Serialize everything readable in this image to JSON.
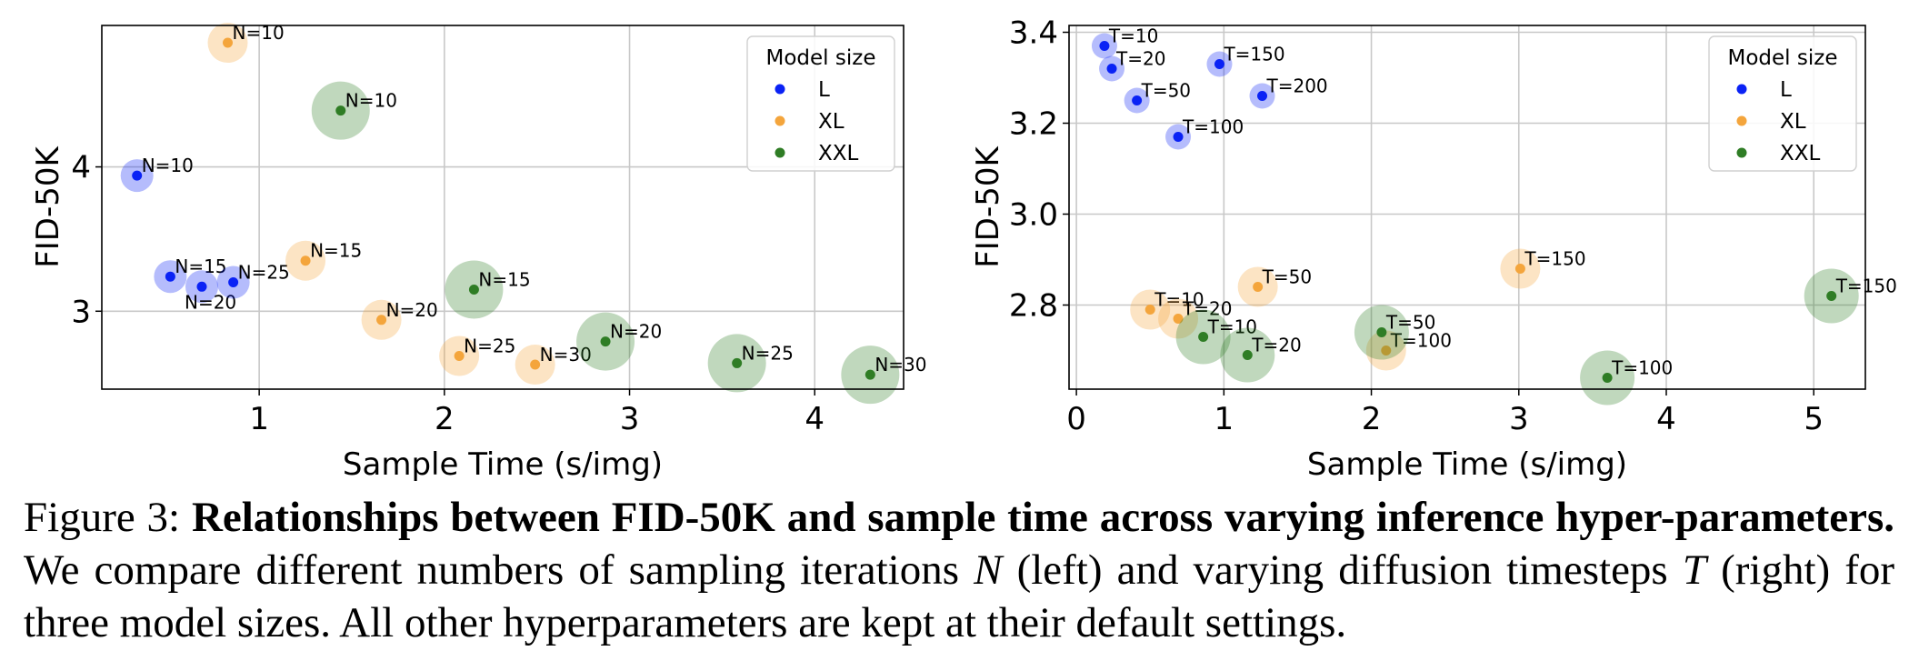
{
  "colors": {
    "L": "#0a22f5",
    "XL": "#f4a53c",
    "XXL": "#2f7d25",
    "grid": "#c8c8c8"
  },
  "chart_data": [
    {
      "type": "scatter",
      "title": "",
      "xlabel": "Sample Time (s/img)",
      "ylabel": "FID-50K",
      "xlim": [
        0.15,
        4.48
      ],
      "ylim": [
        2.46,
        4.98
      ],
      "x_ticks": [
        1,
        2,
        3,
        4
      ],
      "y_ticks": [
        3,
        4
      ],
      "grid": true,
      "legend": {
        "title": "Model size",
        "placement": "top-right"
      },
      "series": [
        {
          "name": "L",
          "points": [
            {
              "x": 0.34,
              "y": 3.94,
              "label": "N=10"
            },
            {
              "x": 0.52,
              "y": 3.24,
              "label": "N=15"
            },
            {
              "x": 0.69,
              "y": 3.17,
              "label": "N=20"
            },
            {
              "x": 0.86,
              "y": 3.2,
              "label": "N=25"
            }
          ]
        },
        {
          "name": "XL",
          "points": [
            {
              "x": 0.83,
              "y": 4.86,
              "label": "N=10"
            },
            {
              "x": 1.25,
              "y": 3.35,
              "label": "N=15"
            },
            {
              "x": 1.66,
              "y": 2.94,
              "label": "N=20"
            },
            {
              "x": 2.08,
              "y": 2.69,
              "label": "N=25"
            },
            {
              "x": 2.49,
              "y": 2.63,
              "label": "N=30"
            }
          ]
        },
        {
          "name": "XXL",
          "points": [
            {
              "x": 1.44,
              "y": 4.39,
              "label": "N=10"
            },
            {
              "x": 2.16,
              "y": 3.15,
              "label": "N=15"
            },
            {
              "x": 2.87,
              "y": 2.79,
              "label": "N=20"
            },
            {
              "x": 3.58,
              "y": 2.64,
              "label": "N=25"
            },
            {
              "x": 4.3,
              "y": 2.56,
              "label": "N=30"
            }
          ]
        }
      ]
    },
    {
      "type": "scatter",
      "title": "",
      "xlabel": "Sample Time (s/img)",
      "ylabel": "FID-50K",
      "xlim": [
        -0.05,
        5.35
      ],
      "ylim": [
        2.615,
        3.415
      ],
      "x_ticks": [
        0,
        1,
        2,
        3,
        4,
        5
      ],
      "y_ticks": [
        "2.8",
        "3.0",
        "3.2",
        "3.4"
      ],
      "grid": true,
      "legend": {
        "title": "Model size",
        "placement": "top-right"
      },
      "series": [
        {
          "name": "L",
          "points": [
            {
              "x": 0.19,
              "y": 3.37,
              "label": "T=10"
            },
            {
              "x": 0.24,
              "y": 3.32,
              "label": "T=20"
            },
            {
              "x": 0.41,
              "y": 3.25,
              "label": "T=50"
            },
            {
              "x": 0.69,
              "y": 3.17,
              "label": "T=100"
            },
            {
              "x": 0.97,
              "y": 3.33,
              "label": "T=150"
            },
            {
              "x": 1.26,
              "y": 3.26,
              "label": "T=200"
            }
          ]
        },
        {
          "name": "XL",
          "points": [
            {
              "x": 0.5,
              "y": 2.79,
              "label": "T=10"
            },
            {
              "x": 0.69,
              "y": 2.77,
              "label": "T=20"
            },
            {
              "x": 1.23,
              "y": 2.84,
              "label": "T=50"
            },
            {
              "x": 2.1,
              "y": 2.7,
              "label": "T=100"
            },
            {
              "x": 3.01,
              "y": 2.88,
              "label": "T=150"
            }
          ]
        },
        {
          "name": "XXL",
          "points": [
            {
              "x": 0.86,
              "y": 2.73,
              "label": "T=10"
            },
            {
              "x": 1.16,
              "y": 2.69,
              "label": "T=20"
            },
            {
              "x": 2.07,
              "y": 2.74,
              "label": "T=50"
            },
            {
              "x": 3.6,
              "y": 2.64,
              "label": "T=100"
            },
            {
              "x": 5.12,
              "y": 2.82,
              "label": "T=150"
            }
          ]
        }
      ]
    }
  ],
  "caption": {
    "label": "Figure 3:",
    "bold": "Relationships between FID-50K and sample time across varying inference hyper-parameters.",
    "text1": "We compare different numbers of sampling iterations",
    "var1": "N",
    "text2": "(left) and varying diffusion timesteps",
    "var2": "T",
    "text3": "(right) for three model sizes. All other hyperparameters are kept at their default settings."
  }
}
